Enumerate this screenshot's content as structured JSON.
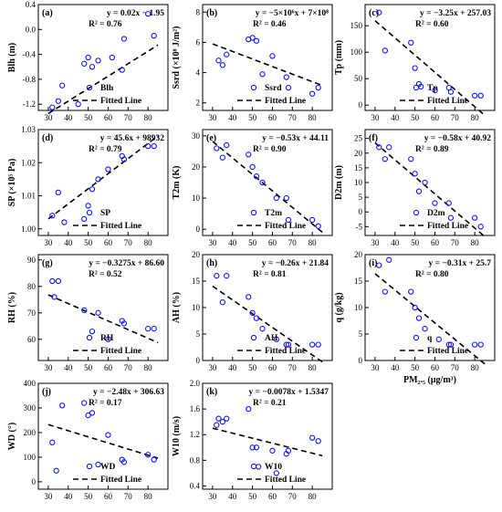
{
  "chart_data": [
    {
      "type": "scatter",
      "id": "a",
      "letter": "(a)",
      "ylabel": "Blh (m)",
      "ylim": [
        -1.3,
        0.4
      ],
      "yticks": [
        -1.2,
        -0.8,
        -0.4,
        0.0,
        0.4
      ],
      "ytick_labels": [
        "-1.2",
        "-0.8",
        "-0.4",
        "0.0",
        "0.4"
      ],
      "x": [
        32,
        35,
        37,
        45,
        48,
        50,
        52,
        55,
        62,
        67,
        68,
        80,
        83
      ],
      "y": [
        -1.25,
        -1.15,
        -0.9,
        -1.2,
        -0.55,
        -0.45,
        -0.6,
        -0.5,
        -0.45,
        -0.65,
        -0.15,
        0.25,
        -0.1
      ],
      "fit": {
        "slope": 0.02,
        "intercept": -1.95
      },
      "equation": "y = 0.02x − 1.95",
      "r2": "R² = 0.76",
      "legend_series": "Blh",
      "legend_fit": "Fitted Line"
    },
    {
      "type": "scatter",
      "id": "b",
      "letter": "(b)",
      "ylabel": "Ssrd (×10⁸ J/m²)",
      "ylim": [
        1.5,
        8.5
      ],
      "yticks": [
        2,
        4,
        6,
        8
      ],
      "ytick_labels": [
        "2",
        "4",
        "6",
        "8"
      ],
      "x": [
        33,
        35,
        37,
        48,
        50,
        52,
        55,
        60,
        67,
        68,
        80,
        83
      ],
      "y": [
        4.8,
        4.5,
        5.2,
        6.2,
        6.3,
        6.1,
        3.9,
        5.1,
        3.7,
        3.0,
        2.6,
        3.0
      ],
      "fit": {
        "slope": -0.05,
        "intercept": 7.4
      },
      "equation": "y = −5×10⁶x + 7×10⁸",
      "r2": "R² = 0.46",
      "legend_series": "Ssrd",
      "legend_fit": "Fitted Line"
    },
    {
      "type": "scatter",
      "id": "c",
      "letter": "(c)",
      "ylabel": "Tp (mm)",
      "ylim": [
        -10,
        190
      ],
      "yticks": [
        0,
        50,
        100,
        150
      ],
      "ytick_labels": [
        "0",
        "50",
        "100",
        "150"
      ],
      "x": [
        32,
        35,
        48,
        50,
        52,
        53,
        60,
        67,
        68,
        80,
        83
      ],
      "y": [
        175,
        103,
        118,
        70,
        40,
        35,
        28,
        33,
        25,
        18,
        18
      ],
      "fit": {
        "slope": -3.25,
        "intercept": 257.03
      },
      "equation": "y = −3.25x + 257.03",
      "r2": "R² = 0.60",
      "legend_series": "Tp",
      "legend_fit": "Fitted Line"
    },
    {
      "type": "scatter",
      "id": "d",
      "letter": "(d)",
      "ylabel": "SP (×10⁵ Pa)",
      "ylim": [
        0.998,
        1.03
      ],
      "yticks": [
        1.0,
        1.01,
        1.02,
        1.03
      ],
      "ytick_labels": [
        "1.00",
        "1.01",
        "1.02",
        "1.03"
      ],
      "x": [
        32,
        35,
        38,
        48,
        50,
        52,
        55,
        60,
        67,
        68,
        80,
        83
      ],
      "y": [
        1.004,
        1.011,
        1.002,
        1.003,
        1.007,
        1.012,
        1.015,
        1.018,
        1.022,
        1.021,
        1.025,
        1.025
      ],
      "fit": {
        "slope": 0.000456,
        "intercept": 0.98932
      },
      "equation": "y = 45.6x + 98932",
      "r2": "R² = 0.79",
      "legend_series": "SP",
      "legend_fit": "Fitted Line"
    },
    {
      "type": "scatter",
      "id": "e",
      "letter": "(e)",
      "ylabel": "T2m (K)",
      "ylim": [
        -2,
        32
      ],
      "yticks": [
        0,
        10,
        20,
        30
      ],
      "ytick_labels": [
        "0",
        "10",
        "20",
        "30"
      ],
      "x": [
        32,
        35,
        37,
        48,
        50,
        52,
        55,
        62,
        67,
        68,
        80,
        83
      ],
      "y": [
        26,
        23,
        27,
        24,
        20,
        17,
        15,
        10,
        10,
        3,
        3,
        1
      ],
      "fit": {
        "slope": -0.53,
        "intercept": 44.11
      },
      "equation": "y = −0.53x + 44.11",
      "r2": "R² = 0.90",
      "legend_series": "T2m",
      "legend_fit": "Fitted Line"
    },
    {
      "type": "scatter",
      "id": "f",
      "letter": "(f)",
      "ylabel": "D2m (m)",
      "ylim": [
        -8,
        28
      ],
      "yticks": [
        -5,
        0,
        5,
        10,
        15,
        20,
        25
      ],
      "ytick_labels": [
        "-5",
        "0",
        "5",
        "10",
        "15",
        "20",
        "25"
      ],
      "x": [
        32,
        35,
        37,
        48,
        50,
        52,
        55,
        60,
        67,
        68,
        80,
        83
      ],
      "y": [
        22,
        18,
        22,
        18,
        13,
        7,
        10,
        3,
        3,
        -2,
        -2,
        -5
      ],
      "fit": {
        "slope": -0.58,
        "intercept": 40.92
      },
      "equation": "y = −0.58x + 40.92",
      "r2": "R² = 0.89",
      "legend_series": "D2m",
      "legend_fit": "Fitted Line"
    },
    {
      "type": "scatter",
      "id": "g",
      "letter": "(g)",
      "ylabel": "RH (%)",
      "ylim": [
        52,
        92
      ],
      "yticks": [
        60,
        70,
        80,
        90
      ],
      "ytick_labels": [
        "60",
        "70",
        "80",
        "90"
      ],
      "x": [
        32,
        33,
        35,
        48,
        52,
        55,
        60,
        67,
        68,
        80,
        83
      ],
      "y": [
        82,
        76,
        82,
        71,
        63,
        70,
        60,
        67,
        66,
        64,
        64
      ],
      "fit": {
        "slope": -0.3275,
        "intercept": 86.6
      },
      "equation": "y = −0.3275x + 86.60",
      "r2": "R² = 0.52",
      "legend_series": "RH",
      "legend_fit": "Fitted Line"
    },
    {
      "type": "scatter",
      "id": "h",
      "letter": "(h)",
      "ylabel": "AH (%)",
      "ylim": [
        0,
        20
      ],
      "yticks": [
        0,
        5,
        10,
        15,
        20
      ],
      "ytick_labels": [
        "0",
        "5",
        "10",
        "15",
        "20"
      ],
      "x": [
        32,
        35,
        37,
        48,
        50,
        52,
        55,
        62,
        67,
        68,
        80,
        83
      ],
      "y": [
        16,
        11,
        16,
        12,
        9,
        8,
        6,
        4,
        3,
        3,
        3,
        3
      ],
      "fit": {
        "slope": -0.26,
        "intercept": 21.84
      },
      "equation": "y = −0.26x + 21.84",
      "r2": "R² = 0.81",
      "legend_series": "AH",
      "legend_fit": "Fitted Line"
    },
    {
      "type": "scatter",
      "id": "i",
      "letter": "(i)",
      "ylabel": "q (g/kg)",
      "ylim": [
        0,
        20
      ],
      "yticks": [
        0,
        5,
        10,
        15,
        20
      ],
      "ytick_labels": [
        "0",
        "5",
        "10",
        "15",
        "20"
      ],
      "x": [
        32,
        35,
        37,
        48,
        50,
        52,
        55,
        62,
        67,
        68,
        80,
        83
      ],
      "y": [
        18,
        13,
        19,
        13,
        10,
        8,
        6,
        4,
        3,
        3,
        3,
        3
      ],
      "fit": {
        "slope": -0.31,
        "intercept": 25.7
      },
      "equation": "y = −0.31x + 25.7",
      "r2": "R² = 0.80",
      "legend_series": "q",
      "legend_fit": "Fitted Line",
      "xlabel": "PM₂.₅ (μg/m³)"
    },
    {
      "type": "scatter",
      "id": "j",
      "letter": "(j)",
      "ylabel": "WD (°)",
      "ylim": [
        -30,
        400
      ],
      "yticks": [
        0,
        100,
        200,
        300,
        400
      ],
      "ytick_labels": [
        "0",
        "100",
        "200",
        "300",
        "400"
      ],
      "x": [
        32,
        34,
        37,
        48,
        50,
        52,
        55,
        60,
        67,
        68,
        80,
        83
      ],
      "y": [
        160,
        45,
        310,
        320,
        270,
        280,
        70,
        190,
        90,
        80,
        110,
        90
      ],
      "fit": {
        "slope": -2.48,
        "intercept": 306.63
      },
      "equation": "y = −2.48x + 306.63",
      "r2": "R² = 0.17",
      "legend_series": "WD",
      "legend_fit": "Fitted Line",
      "xlabel": ""
    },
    {
      "type": "scatter",
      "id": "k",
      "letter": "(k)",
      "ylabel": "W10 (m/s)",
      "ylim": [
        0.35,
        2.0
      ],
      "yticks": [
        0.4,
        0.8,
        1.2,
        1.6,
        2.0
      ],
      "ytick_labels": [
        "0.4",
        "0.8",
        "1.2",
        "1.6",
        "2.0"
      ],
      "x": [
        32,
        33,
        35,
        37,
        48,
        50,
        52,
        53,
        60,
        62,
        67,
        68,
        80,
        83
      ],
      "y": [
        1.35,
        1.45,
        1.4,
        1.45,
        1.6,
        1.0,
        1.0,
        0.7,
        0.95,
        0.6,
        0.9,
        0.95,
        1.15,
        1.1
      ],
      "fit": {
        "slope": -0.0078,
        "intercept": 1.5347
      },
      "equation": "y = −0.0078x + 1.5347",
      "r2": "R² = 0.21",
      "legend_series": "W10",
      "legend_fit": "Fitted Line",
      "xlabel": ""
    }
  ],
  "x_axis": {
    "xlim": [
      25,
      90
    ],
    "xticks": [
      30,
      40,
      50,
      60,
      70,
      80
    ],
    "xtick_labels": [
      "30",
      "40",
      "50",
      "60",
      "70",
      "80"
    ]
  }
}
